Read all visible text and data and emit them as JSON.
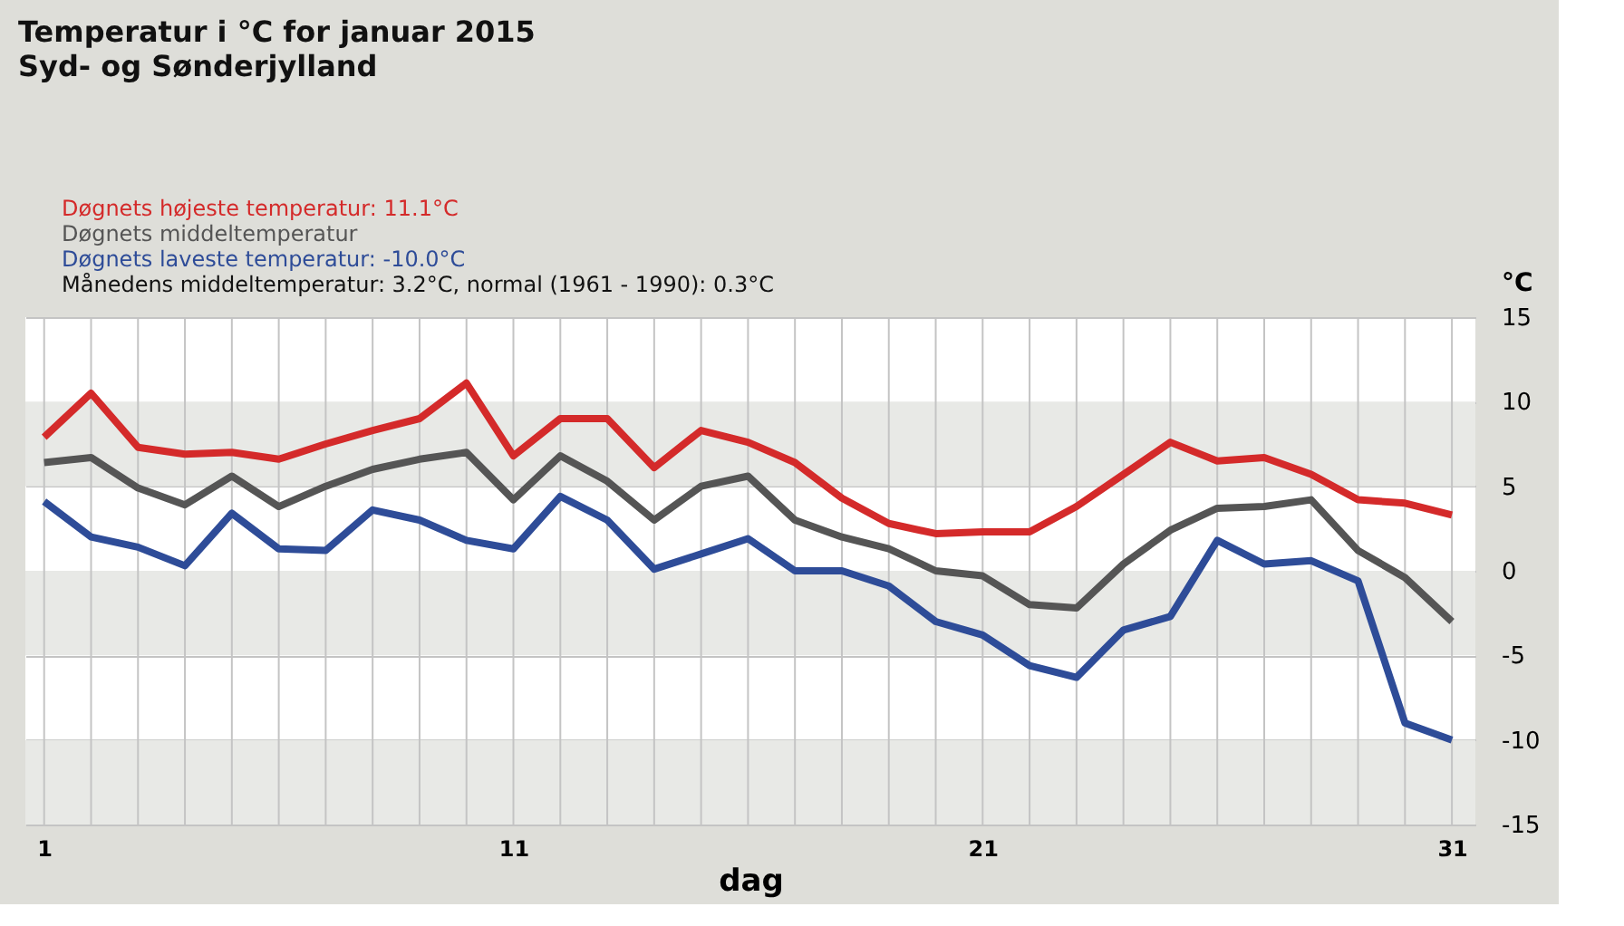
{
  "chart_data": {
    "type": "line",
    "title": "Temperatur i °C for januar 2015",
    "subtitle": "Syd- og Sønderjylland",
    "xlabel": "dag",
    "ylabel": "°C",
    "x": [
      1,
      2,
      3,
      4,
      5,
      6,
      7,
      8,
      9,
      10,
      11,
      12,
      13,
      14,
      15,
      16,
      17,
      18,
      19,
      20,
      21,
      22,
      23,
      24,
      25,
      26,
      27,
      28,
      29,
      30,
      31
    ],
    "series": [
      {
        "name": "Døgnets højeste temperatur: 11.1°C",
        "color": "#d42a2a",
        "values": [
          7.9,
          10.5,
          7.3,
          6.9,
          7.0,
          6.6,
          7.5,
          8.3,
          9.0,
          11.1,
          6.8,
          9.0,
          9.0,
          6.1,
          8.3,
          7.6,
          6.4,
          4.3,
          2.8,
          2.2,
          2.3,
          2.3,
          3.8,
          5.7,
          7.6,
          6.5,
          6.7,
          5.7,
          4.2,
          4.0,
          3.3
        ]
      },
      {
        "name": "Døgnets middeltemperatur",
        "color": "#555555",
        "values": [
          6.4,
          6.7,
          4.9,
          3.9,
          5.6,
          3.8,
          5.0,
          6.0,
          6.6,
          7.0,
          4.2,
          6.8,
          5.3,
          3.0,
          5.0,
          5.6,
          3.0,
          2.0,
          1.3,
          0.0,
          -0.3,
          -2.0,
          -2.2,
          0.4,
          2.4,
          3.7,
          3.8,
          4.2,
          1.2,
          -0.4,
          -3.0
        ]
      },
      {
        "name": "Døgnets laveste temperatur: -10.0°C",
        "color": "#2e4c98",
        "values": [
          4.1,
          2.0,
          1.4,
          0.3,
          3.4,
          1.3,
          1.2,
          3.6,
          3.0,
          1.8,
          1.3,
          4.4,
          3.0,
          0.1,
          1.0,
          1.9,
          0.0,
          0.0,
          -0.9,
          -3.0,
          -3.8,
          -5.6,
          -6.3,
          -3.5,
          -2.7,
          1.8,
          0.4,
          0.6,
          -0.6,
          -9.0,
          -10.0
        ]
      }
    ],
    "annotations": [
      "Månedens middeltemperatur: 3.2°C, normal (1961 - 1990): 0.3°C"
    ],
    "xlim": [
      0.6,
      31.5
    ],
    "xticks": [
      1,
      {
        "value": 2,
        "label": null
      },
      {
        "value": 3,
        "label": null
      },
      {
        "value": 4,
        "label": null
      },
      {
        "value": 5,
        "label": null
      },
      {
        "value": 6,
        "label": null
      },
      {
        "value": 7,
        "label": null
      },
      {
        "value": 8,
        "label": null
      },
      {
        "value": 9,
        "label": null
      },
      {
        "value": 10,
        "label": null
      },
      11,
      {
        "value": 12,
        "label": null
      },
      {
        "value": 13,
        "label": null
      },
      {
        "value": 14,
        "label": null
      },
      {
        "value": 15,
        "label": null
      },
      {
        "value": 16,
        "label": null
      },
      {
        "value": 17,
        "label": null
      },
      {
        "value": 18,
        "label": null
      },
      {
        "value": 19,
        "label": null
      },
      {
        "value": 20,
        "label": null
      },
      21,
      {
        "value": 22,
        "label": null
      },
      {
        "value": 23,
        "label": null
      },
      {
        "value": 24,
        "label": null
      },
      {
        "value": 25,
        "label": null
      },
      {
        "value": 26,
        "label": null
      },
      {
        "value": 27,
        "label": null
      },
      {
        "value": 28,
        "label": null
      },
      {
        "value": 29,
        "label": null
      },
      {
        "value": 30,
        "label": null
      },
      31
    ],
    "ylim": [
      -15,
      15
    ],
    "yticks": [
      -15,
      -10,
      -5,
      0,
      5,
      10,
      15
    ],
    "bands": [
      {
        "axis": "y",
        "from": 5,
        "to": 10,
        "color": "#e8e9e6"
      },
      {
        "axis": "y",
        "from": -5,
        "to": 0,
        "color": "#e8e9e6"
      },
      {
        "axis": "y",
        "from": -15,
        "to": -10,
        "color": "#e8e9e6"
      }
    ],
    "grid": true,
    "legend": "top left",
    "line_style": "solid",
    "marker": "none"
  }
}
